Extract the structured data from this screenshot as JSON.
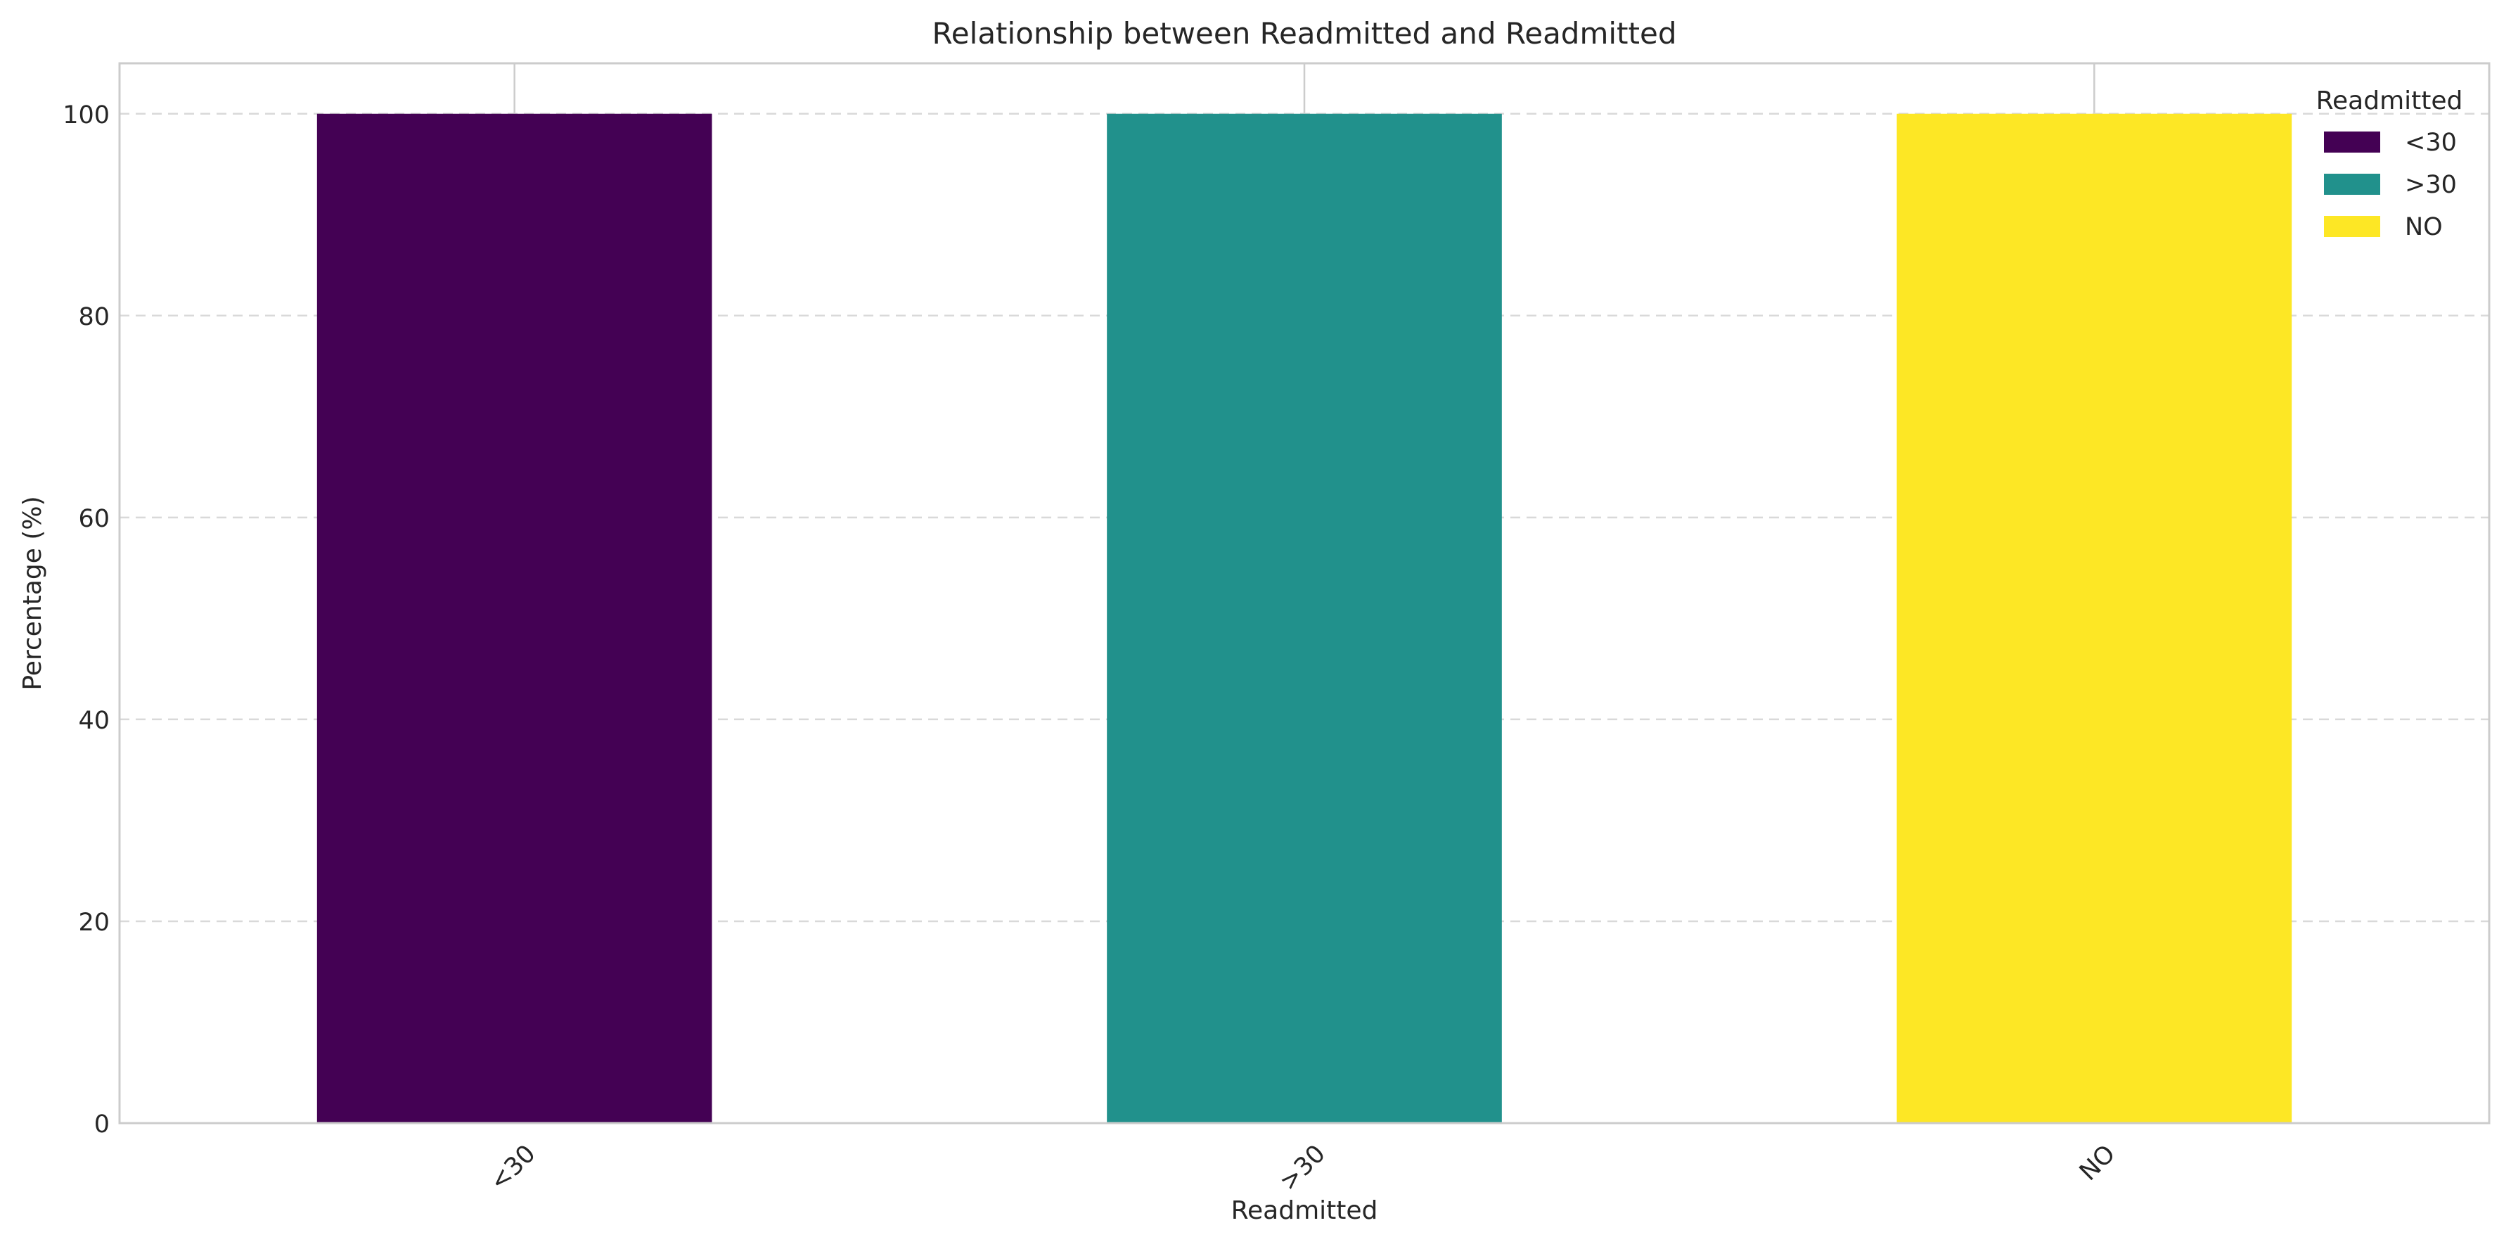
{
  "chart_data": {
    "type": "bar",
    "stacked": true,
    "title": "Relationship between Readmitted and Readmitted",
    "xlabel": "Readmitted",
    "ylabel": "Percentage (%)",
    "categories": [
      "<30",
      ">30",
      "NO"
    ],
    "series": [
      {
        "name": "<30",
        "color": "#440154",
        "values": [
          100,
          0,
          0
        ]
      },
      {
        "name": ">30",
        "color": "#21918c",
        "values": [
          0,
          100,
          0
        ]
      },
      {
        "name": "NO",
        "color": "#fde725",
        "values": [
          0,
          0,
          100
        ]
      }
    ],
    "ylim": [
      0,
      105
    ],
    "yticks": [
      "0",
      "20",
      "40",
      "60",
      "80",
      "100"
    ],
    "grid": {
      "y": true,
      "x": true
    },
    "legend": {
      "title": "Readmitted",
      "position": "top-right"
    }
  }
}
